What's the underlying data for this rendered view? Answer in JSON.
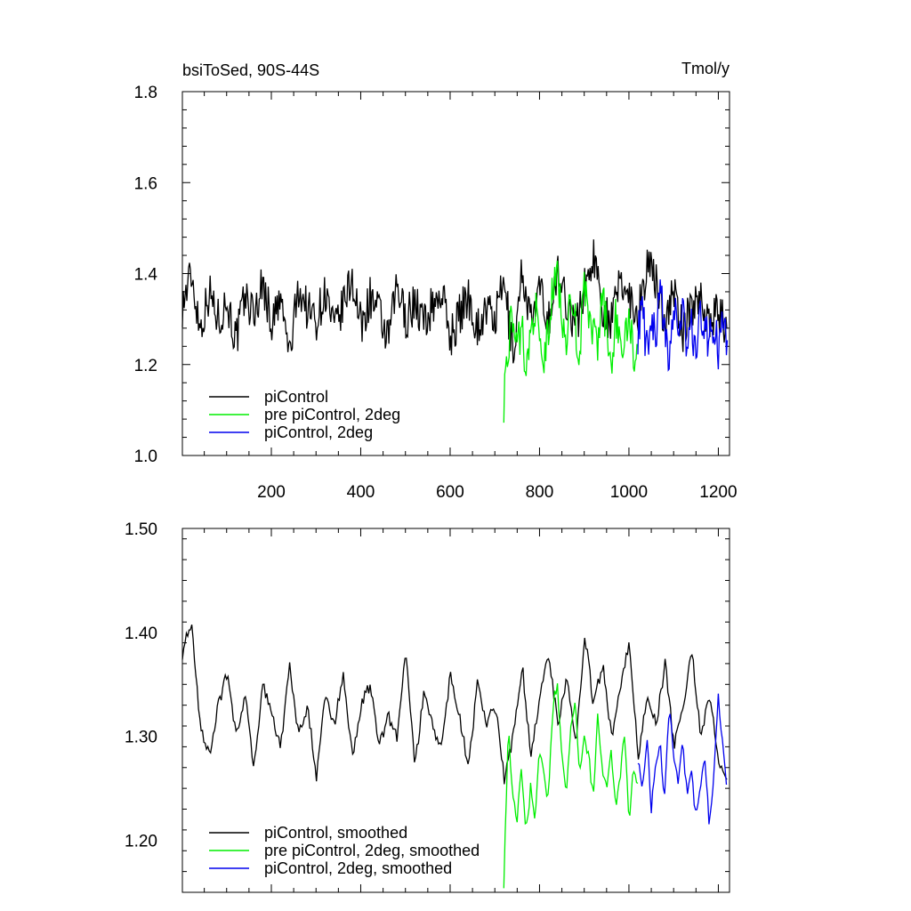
{
  "chart_data": [
    {
      "type": "line",
      "title": "bsiToSed, 90S-44S",
      "units": "Tmol/y",
      "xlim": [
        1,
        1225
      ],
      "ylim": [
        1.0,
        1.8
      ],
      "yticks": [
        1.0,
        1.2,
        1.4,
        1.6,
        1.8
      ],
      "ytick_labels": [
        "1.0",
        "1.2",
        "1.4",
        "1.6",
        "1.8"
      ],
      "xticks": [
        200,
        400,
        600,
        800,
        1000,
        1200
      ],
      "xtick_labels": [
        "200",
        "400",
        "600",
        "800",
        "1000",
        "1200"
      ],
      "grid": false,
      "legend_position": "bottom-left",
      "series": [
        {
          "name": "piControl",
          "color": "#000000",
          "x_range": [
            1,
            1220
          ],
          "sample_step": 20,
          "values": [
            1.33,
            1.4,
            1.28,
            1.36,
            1.3,
            1.34,
            1.25,
            1.35,
            1.31,
            1.38,
            1.29,
            1.34,
            1.22,
            1.37,
            1.32,
            1.3,
            1.36,
            1.27,
            1.33,
            1.39,
            1.28,
            1.35,
            1.31,
            1.25,
            1.37,
            1.3,
            1.34,
            1.29,
            1.33,
            1.36,
            1.26,
            1.31,
            1.35,
            1.28,
            1.32,
            1.3,
            1.38,
            1.22,
            1.41,
            1.29,
            1.36,
            1.3,
            1.4,
            1.34,
            1.28,
            1.37,
            1.44,
            1.33,
            1.29,
            1.39,
            1.35,
            1.31,
            1.42,
            1.38,
            1.3,
            1.36,
            1.27,
            1.33,
            1.35,
            1.29,
            1.32,
            1.26
          ]
        },
        {
          "name": "pre piControl, 2deg",
          "color": "#00ee00",
          "x_range": [
            720,
            1020
          ],
          "sample_step": 10,
          "values": [
            1.12,
            1.25,
            1.31,
            1.22,
            1.29,
            1.18,
            1.27,
            1.33,
            1.24,
            1.2,
            1.28,
            1.36,
            1.4,
            1.31,
            1.26,
            1.34,
            1.29,
            1.22,
            1.37,
            1.3,
            1.27,
            1.24,
            1.35,
            1.28,
            1.19,
            1.31,
            1.26,
            1.23,
            1.32,
            1.21,
            1.25
          ]
        },
        {
          "name": "piControl, 2deg",
          "color": "#0000ee",
          "x_range": [
            1020,
            1220
          ],
          "sample_step": 10,
          "values": [
            1.27,
            1.32,
            1.23,
            1.3,
            1.25,
            1.36,
            1.28,
            1.22,
            1.34,
            1.26,
            1.31,
            1.24,
            1.29,
            1.21,
            1.33,
            1.27,
            1.25,
            1.3,
            1.23,
            1.28,
            1.26
          ]
        }
      ]
    },
    {
      "type": "line",
      "xlim": [
        1,
        1225
      ],
      "ylim": [
        1.15,
        1.5
      ],
      "yticks": [
        1.2,
        1.3,
        1.4,
        1.5
      ],
      "ytick_labels": [
        "1.20",
        "1.30",
        "1.40",
        "1.50"
      ],
      "grid": false,
      "legend_position": "bottom-left",
      "series": [
        {
          "name": "piControl, smoothed",
          "color": "#000000",
          "x_range": [
            1,
            1220
          ],
          "sample_step": 20,
          "values": [
            1.38,
            1.41,
            1.31,
            1.28,
            1.33,
            1.36,
            1.3,
            1.34,
            1.27,
            1.35,
            1.32,
            1.29,
            1.37,
            1.3,
            1.33,
            1.26,
            1.34,
            1.31,
            1.36,
            1.28,
            1.33,
            1.35,
            1.29,
            1.32,
            1.3,
            1.38,
            1.27,
            1.34,
            1.31,
            1.29,
            1.36,
            1.32,
            1.27,
            1.35,
            1.31,
            1.33,
            1.26,
            1.3,
            1.37,
            1.28,
            1.34,
            1.38,
            1.31,
            1.36,
            1.29,
            1.4,
            1.33,
            1.37,
            1.3,
            1.35,
            1.39,
            1.28,
            1.34,
            1.31,
            1.37,
            1.29,
            1.33,
            1.38,
            1.3,
            1.34,
            1.27,
            1.26
          ]
        },
        {
          "name": "pre piControl, 2deg, smoothed",
          "color": "#00ee00",
          "x_range": [
            720,
            1020
          ],
          "sample_step": 10,
          "values": [
            1.16,
            1.31,
            1.24,
            1.22,
            1.27,
            1.21,
            1.25,
            1.22,
            1.29,
            1.26,
            1.24,
            1.33,
            1.35,
            1.28,
            1.25,
            1.31,
            1.33,
            1.26,
            1.3,
            1.28,
            1.24,
            1.32,
            1.27,
            1.25,
            1.29,
            1.23,
            1.26,
            1.3,
            1.22,
            1.27,
            1.25
          ]
        },
        {
          "name": "piControl, 2deg, smoothed",
          "color": "#0000ee",
          "x_range": [
            1020,
            1220
          ],
          "sample_step": 10,
          "values": [
            1.28,
            1.25,
            1.3,
            1.23,
            1.27,
            1.29,
            1.24,
            1.33,
            1.28,
            1.26,
            1.3,
            1.24,
            1.27,
            1.22,
            1.25,
            1.28,
            1.21,
            1.26,
            1.34,
            1.29,
            1.25
          ]
        }
      ]
    }
  ]
}
